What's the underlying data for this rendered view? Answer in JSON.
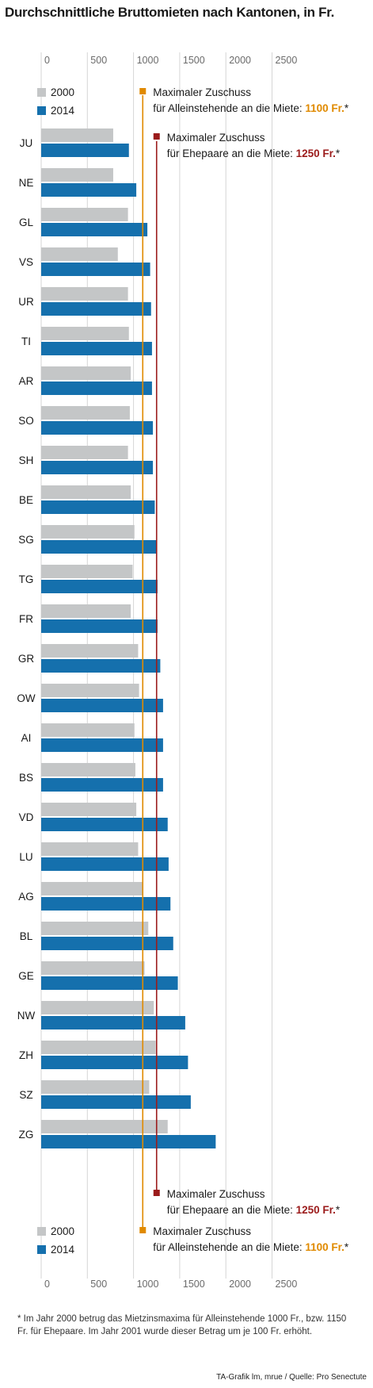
{
  "title": "Durchschnittliche Bruttomieten nach Kantonen, in Fr.",
  "chart_data": {
    "type": "bar",
    "orientation": "horizontal",
    "title": "Durchschnittliche Bruttomieten nach Kantonen, in Fr.",
    "xticks": [
      0,
      500,
      1000,
      1500,
      2000,
      2500
    ],
    "xlim": [
      0,
      2800
    ],
    "categories": [
      "JU",
      "NE",
      "GL",
      "VS",
      "UR",
      "TI",
      "AR",
      "SO",
      "SH",
      "BE",
      "SG",
      "TG",
      "FR",
      "GR",
      "OW",
      "AI",
      "BS",
      "VD",
      "LU",
      "AG",
      "BL",
      "GE",
      "NW",
      "ZH",
      "SZ",
      "ZG"
    ],
    "series": [
      {
        "name": "2000",
        "color": "#c4c6c7",
        "values": [
          780,
          780,
          940,
          830,
          940,
          950,
          970,
          960,
          940,
          970,
          1010,
          990,
          970,
          1050,
          1060,
          1010,
          1020,
          1030,
          1050,
          1100,
          1160,
          1120,
          1220,
          1240,
          1170,
          1370
        ]
      },
      {
        "name": "2014",
        "color": "#1570ad",
        "values": [
          950,
          1030,
          1150,
          1180,
          1190,
          1200,
          1200,
          1210,
          1210,
          1230,
          1250,
          1260,
          1260,
          1290,
          1320,
          1320,
          1320,
          1370,
          1380,
          1400,
          1430,
          1480,
          1560,
          1590,
          1620,
          1890
        ]
      }
    ],
    "reference_lines": [
      {
        "label_line1": "Maximaler Zuschuss",
        "label_line2_pre": "für Alleinstehende an die Miete:",
        "label_value": "1100 Fr.",
        "label_suffix": "*",
        "value": 1100,
        "color": "#e08a00"
      },
      {
        "label_line1": "Maximaler Zuschuss",
        "label_line2_pre": "für Ehepaare an die Miete:",
        "label_value": "1250 Fr.",
        "label_suffix": "*",
        "value": 1250,
        "color": "#9b1b1b"
      }
    ],
    "grid": true,
    "legend_position": "top-left and bottom-left"
  },
  "footnote": "* Im Jahr 2000 betrug das Mietzinsmaxima für Alleinstehende 1000 Fr., bzw. 1150 Fr. für Ehepaare. Im Jahr 2001 wurde dieser Betrag um je 100 Fr. erhöht.",
  "source": "TA-Grafik lm, mrue / Quelle: Pro Senectute"
}
